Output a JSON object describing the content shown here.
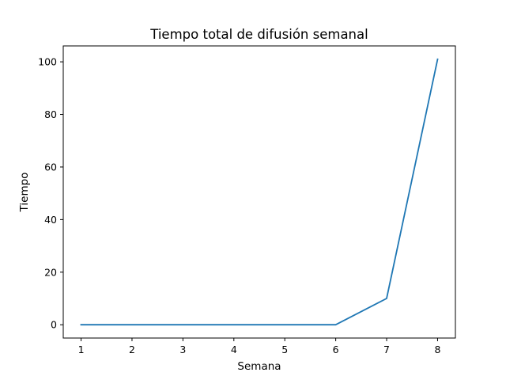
{
  "chart_data": {
    "type": "line",
    "title": "Tiempo total de difusión semanal",
    "xlabel": "Semana",
    "ylabel": "Tiempo",
    "x": [
      1,
      2,
      3,
      4,
      5,
      6,
      7,
      8
    ],
    "x_ticks": [
      "1",
      "2",
      "3",
      "4",
      "5",
      "6",
      "7",
      "8"
    ],
    "y_ticks": [
      "0",
      "20",
      "40",
      "60",
      "80",
      "100"
    ],
    "xlim": [
      0.65,
      8.35
    ],
    "ylim": [
      -5.05,
      106.05
    ],
    "grid": false,
    "series": [
      {
        "values": [
          0,
          0,
          0,
          0,
          0,
          0,
          10,
          101
        ],
        "color": "#1f77b4"
      }
    ]
  }
}
